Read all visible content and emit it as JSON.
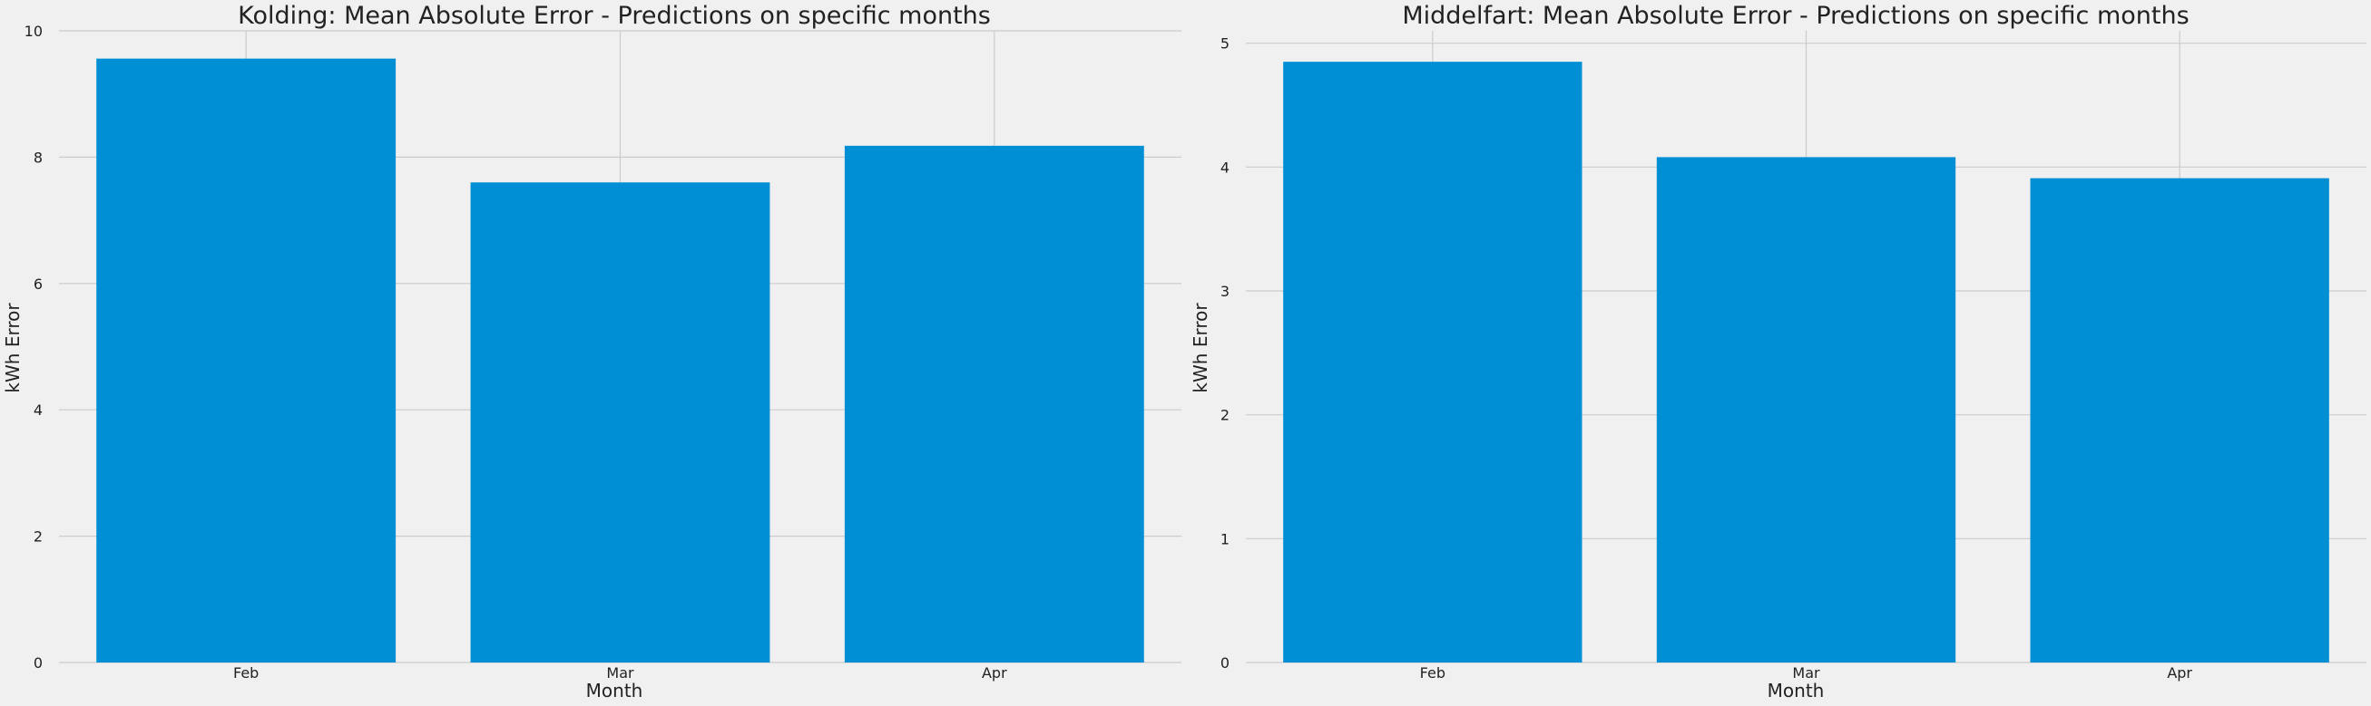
{
  "chart_data": [
    {
      "type": "bar",
      "title": "Kolding: Mean Absolute Error - Predictions on specific months",
      "xlabel": "Month",
      "ylabel": "kWh Error",
      "categories": [
        "Feb",
        "Mar",
        "Apr"
      ],
      "values": [
        9.56,
        7.6,
        8.18
      ],
      "ylim": [
        0,
        10
      ],
      "yticks": [
        0,
        2,
        4,
        6,
        8,
        10
      ],
      "grid": true,
      "bar_color": "#008fd5"
    },
    {
      "type": "bar",
      "title": "Middelfart: Mean Absolute Error - Predictions on specific months",
      "xlabel": "Month",
      "ylabel": "kWh Error",
      "categories": [
        "Feb",
        "Mar",
        "Apr"
      ],
      "values": [
        4.85,
        4.08,
        3.91
      ],
      "ylim": [
        0,
        5.1
      ],
      "yticks": [
        0,
        1,
        2,
        3,
        4,
        5
      ],
      "grid": true,
      "bar_color": "#008fd5"
    }
  ]
}
